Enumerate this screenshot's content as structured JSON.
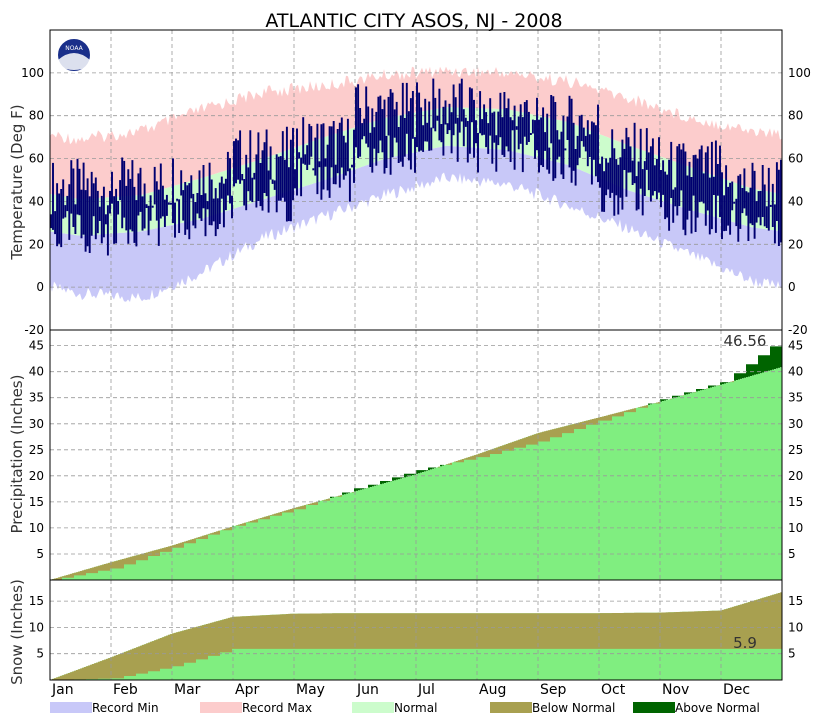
{
  "chart_data": {
    "type": "area",
    "title": "ATLANTIC CITY  ASOS, NJ - 2008",
    "logo_text": "NOAA",
    "months": [
      "Jan",
      "Feb",
      "Mar",
      "Apr",
      "May",
      "Jun",
      "Jul",
      "Aug",
      "Sep",
      "Oct",
      "Nov",
      "Dec"
    ],
    "legend": [
      {
        "label": "Record Min",
        "color": "#c8c8f8"
      },
      {
        "label": "Record Max",
        "color": "#fccccc"
      },
      {
        "label": "Normal",
        "color": "#ccfccc"
      },
      {
        "label": "Below Normal",
        "color": "#a8a050"
      },
      {
        "label": "Above Normal",
        "color": "#006400"
      }
    ],
    "colors": {
      "record_min": "#c8c8f8",
      "record_max": "#fccccc",
      "normal_band": "#ccfccc",
      "observed": "#000070",
      "normal_precip": "#80ee80",
      "below": "#a8a050",
      "above": "#006400",
      "grid": "#999999"
    },
    "panels": {
      "temperature": {
        "ylabel": "Temperature (Deg F)",
        "ylim": [
          -20,
          120
        ],
        "ticks": [
          -20,
          0,
          20,
          40,
          60,
          80,
          100
        ],
        "tick_labels": [
          "-20",
          "0",
          "20",
          "40",
          "60",
          "80",
          "100"
        ],
        "monthly_normal_high": [
          41,
          43,
          51,
          60,
          70,
          79,
          84,
          83,
          77,
          66,
          56,
          46
        ],
        "monthly_normal_low": [
          24,
          26,
          32,
          41,
          50,
          60,
          66,
          64,
          57,
          45,
          36,
          28
        ],
        "monthly_record_high": [
          72,
          76,
          86,
          94,
          97,
          102,
          104,
          103,
          99,
          91,
          82,
          76
        ],
        "monthly_record_low": [
          -6,
          -8,
          4,
          20,
          30,
          40,
          48,
          45,
          35,
          24,
          12,
          0
        ],
        "monthly_observed_high": [
          47,
          48,
          52,
          62,
          68,
          83,
          85,
          82,
          77,
          64,
          56,
          48
        ],
        "monthly_observed_low": [
          25,
          30,
          32,
          41,
          50,
          61,
          67,
          64,
          58,
          44,
          35,
          30
        ]
      },
      "precipitation": {
        "ylabel": "Precipitation (Inches)",
        "ylim": [
          0,
          48
        ],
        "ticks": [
          5,
          10,
          15,
          20,
          25,
          30,
          35,
          40,
          45
        ],
        "tick_labels": [
          "5",
          "10",
          "15",
          "20",
          "25",
          "30",
          "35",
          "40",
          "45"
        ],
        "annotation": "46.56",
        "normal_cumulative_monthend": [
          3.4,
          6.6,
          10.3,
          13.8,
          17.0,
          20.3,
          24.1,
          28.2,
          31.2,
          34.2,
          37.5,
          40.9
        ],
        "observed_cumulative_monthend": [
          2.2,
          6.2,
          10.4,
          13.6,
          17.6,
          21.1,
          23.6,
          26.6,
          30.6,
          34.7,
          38.0,
          46.56
        ]
      },
      "snow": {
        "ylabel": "Snow (Inches)",
        "ylim": [
          0,
          19
        ],
        "ticks": [
          5,
          10,
          15
        ],
        "tick_labels": [
          "5",
          "10",
          "15"
        ],
        "annotation": "5.9",
        "normal_cumulative_monthend": [
          4.3,
          8.8,
          12.0,
          12.6,
          12.7,
          12.7,
          12.7,
          12.7,
          12.7,
          12.8,
          13.2,
          16.7
        ],
        "observed_cumulative_monthend": [
          0.3,
          2.6,
          5.9,
          5.9,
          5.9,
          5.9,
          5.9,
          5.9,
          5.9,
          5.9,
          5.9,
          5.9
        ]
      }
    }
  }
}
